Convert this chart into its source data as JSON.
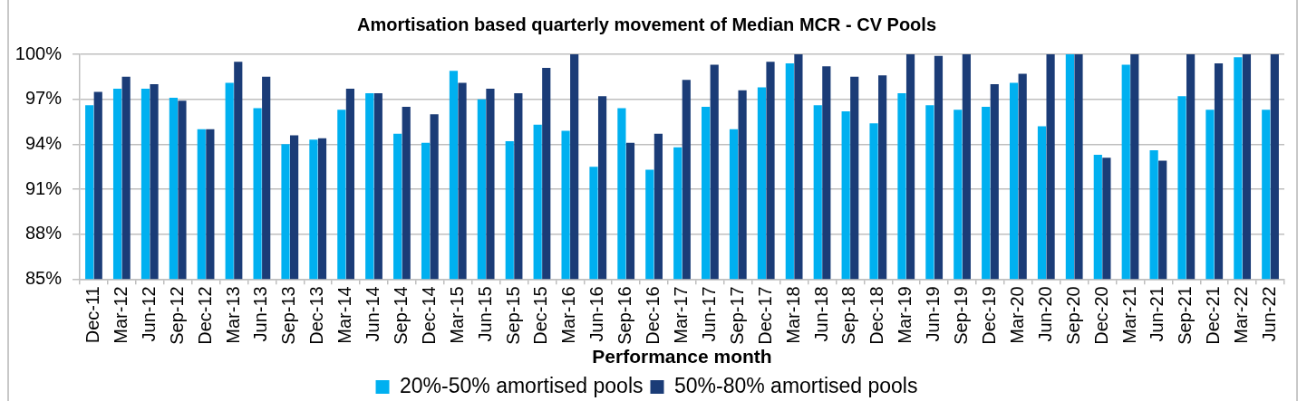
{
  "chart_data": {
    "type": "bar",
    "title": "Amortisation based quarterly movement of Median MCR - CV Pools",
    "xlabel": "Performance month",
    "categories": [
      "Dec-11",
      "Mar-12",
      "Jun-12",
      "Sep-12",
      "Dec-12",
      "Mar-13",
      "Jun-13",
      "Sep-13",
      "Dec-13",
      "Mar-14",
      "Jun-14",
      "Sep-14",
      "Dec-14",
      "Mar-15",
      "Jun-15",
      "Sep-15",
      "Dec-15",
      "Mar-16",
      "Jun-16",
      "Sep-16",
      "Dec-16",
      "Mar-17",
      "Jun-17",
      "Sep-17",
      "Dec-17",
      "Mar-18",
      "Jun-18",
      "Sep-18",
      "Dec-18",
      "Mar-19",
      "Jun-19",
      "Sep-19",
      "Dec-19",
      "Mar-20",
      "Jun-20",
      "Sep-20",
      "Dec-20",
      "Mar-21",
      "Jun-21",
      "Sep-21",
      "Dec-21",
      "Mar-22",
      "Jun-22"
    ],
    "series": [
      {
        "name": "20%-50% amortised pools",
        "color": "#00b0f0",
        "values": [
          96.6,
          97.7,
          97.7,
          97.1,
          95.0,
          98.1,
          96.4,
          94.0,
          94.3,
          96.3,
          97.4,
          94.7,
          94.1,
          98.9,
          97.0,
          94.2,
          95.3,
          94.9,
          92.5,
          96.4,
          92.3,
          93.8,
          96.5,
          95.0,
          97.8,
          99.4,
          96.6,
          96.2,
          95.4,
          97.4,
          96.6,
          96.3,
          96.5,
          98.1,
          95.2,
          100,
          93.3,
          99.3,
          93.6,
          97.2,
          96.3,
          99.8,
          96.3
        ]
      },
      {
        "name": "50%-80% amortised pools",
        "color": "#1b3c77",
        "values": [
          97.5,
          98.5,
          98.0,
          96.9,
          95.0,
          99.5,
          98.5,
          94.6,
          94.4,
          97.7,
          97.4,
          96.5,
          96.0,
          98.1,
          97.7,
          97.4,
          99.1,
          100,
          97.2,
          94.1,
          94.7,
          98.3,
          99.3,
          97.6,
          99.5,
          100,
          99.2,
          98.5,
          98.6,
          100,
          99.9,
          100,
          98.0,
          98.7,
          100,
          100,
          93.1,
          100,
          92.9,
          100,
          99.4,
          100,
          100
        ]
      }
    ],
    "ylim": [
      85,
      100
    ],
    "yticks": [
      {
        "value": 85,
        "label": "85%"
      },
      {
        "value": 88,
        "label": "88%"
      },
      {
        "value": 91,
        "label": "91%"
      },
      {
        "value": 94,
        "label": "94%"
      },
      {
        "value": 97,
        "label": "97%"
      },
      {
        "value": 100,
        "label": "100%"
      }
    ],
    "grid": "y",
    "legend": "bottom"
  }
}
